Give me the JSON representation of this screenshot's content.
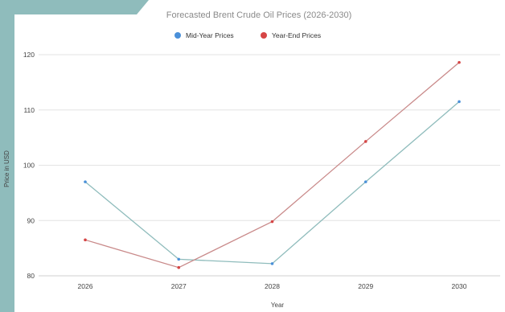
{
  "chart_data": {
    "type": "line",
    "title": "Forecasted Brent Crude Oil Prices (2026-2030)",
    "xlabel": "Year",
    "ylabel": "Price in USD",
    "categories": [
      "2026",
      "2027",
      "2028",
      "2029",
      "2030"
    ],
    "ylim": [
      80,
      120
    ],
    "yticks": [
      80,
      90,
      100,
      110,
      120
    ],
    "grid": true,
    "legend_position": "top-center",
    "series": [
      {
        "name": "Mid-Year Prices",
        "line_color": "#8fbcbc",
        "marker_color": "#4a90d9",
        "values": [
          97,
          83,
          82.2,
          97,
          111.5
        ]
      },
      {
        "name": "Year-End Prices",
        "line_color": "#c98a8a",
        "marker_color": "#d64545",
        "values": [
          86.5,
          81.5,
          89.8,
          104.3,
          118.6
        ]
      }
    ]
  },
  "colors": {
    "corner_accent": "#8fbcbc"
  }
}
